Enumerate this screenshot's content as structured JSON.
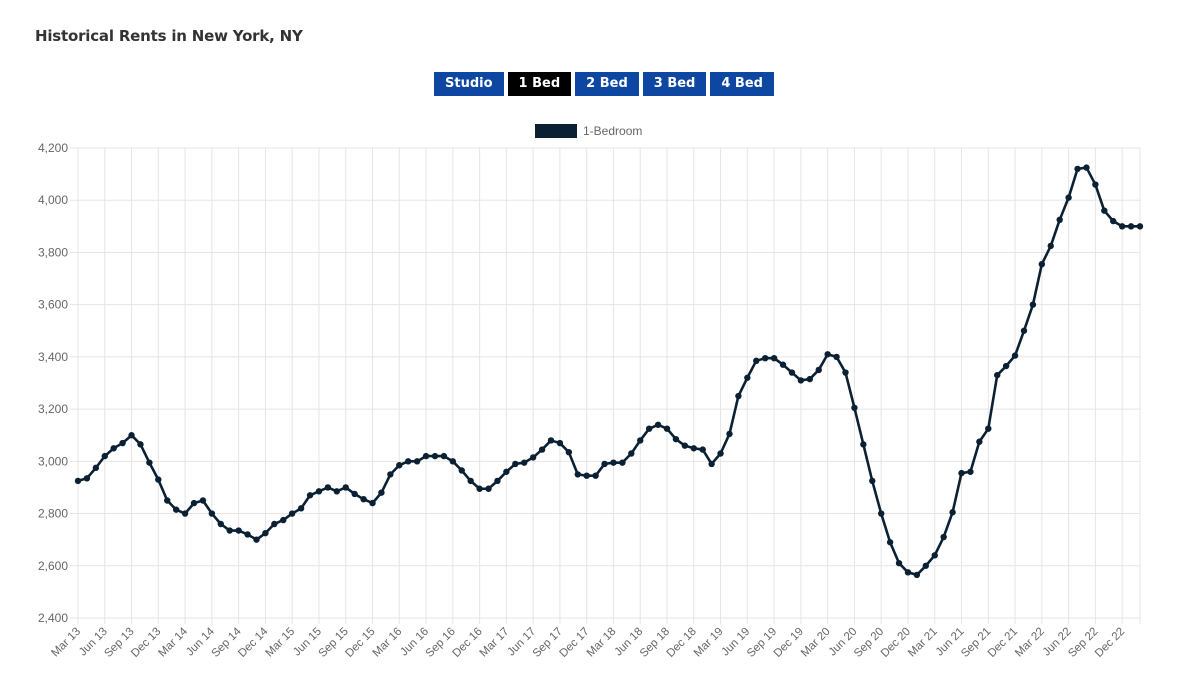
{
  "page": {
    "title": "Historical Rents in New York, NY"
  },
  "tabs": [
    {
      "label": "Studio",
      "active": false
    },
    {
      "label": "1 Bed",
      "active": true
    },
    {
      "label": "2 Bed",
      "active": false
    },
    {
      "label": "3 Bed",
      "active": false
    },
    {
      "label": "4 Bed",
      "active": false
    }
  ],
  "colors": {
    "line": "#0b2133",
    "tab": "#0d47a1",
    "tab_active": "#000000",
    "grid": "#e5e5e5"
  },
  "chart_data": {
    "type": "line",
    "title": "",
    "xlabel": "",
    "ylabel": "",
    "legend": {
      "placement": "top-center",
      "entries": [
        "1-Bedroom"
      ]
    },
    "grid": true,
    "ylim": [
      2400,
      4200
    ],
    "yticks": [
      "2,400",
      "2,600",
      "2,800",
      "3,000",
      "3,200",
      "3,400",
      "3,600",
      "3,800",
      "4,000",
      "4,200"
    ],
    "xticks": [
      "Mar 13",
      "Jun 13",
      "Sep 13",
      "Dec 13",
      "Mar 14",
      "Jun 14",
      "Sep 14",
      "Dec 14",
      "Mar 15",
      "Jun 15",
      "Sep 15",
      "Dec 15",
      "Mar 16",
      "Jun 16",
      "Sep 16",
      "Dec 16",
      "Mar 17",
      "Jun 17",
      "Sep 17",
      "Dec 17",
      "Mar 18",
      "Jun 18",
      "Sep 18",
      "Dec 18",
      "Mar 19",
      "Jun 19",
      "Sep 19",
      "Dec 19",
      "Mar 20",
      "Jun 20",
      "Sep 20",
      "Dec 20",
      "Mar 21",
      "Jun 21",
      "Sep 21",
      "Dec 21",
      "Mar 22",
      "Jun 22",
      "Sep 22",
      "Dec 22"
    ],
    "x_start": "Mar 13",
    "x_frequency": "monthly",
    "series": [
      {
        "name": "1-Bedroom",
        "values": [
          2925,
          2935,
          2975,
          3020,
          3050,
          3070,
          3100,
          3065,
          2995,
          2930,
          2850,
          2815,
          2800,
          2840,
          2850,
          2800,
          2760,
          2735,
          2735,
          2720,
          2700,
          2725,
          2760,
          2775,
          2800,
          2820,
          2870,
          2885,
          2900,
          2885,
          2900,
          2875,
          2855,
          2840,
          2880,
          2950,
          2985,
          3000,
          3000,
          3020,
          3020,
          3020,
          3000,
          2965,
          2925,
          2895,
          2895,
          2925,
          2960,
          2990,
          2995,
          3015,
          3045,
          3080,
          3070,
          3035,
          2950,
          2945,
          2945,
          2990,
          2995,
          2995,
          3030,
          3080,
          3125,
          3140,
          3125,
          3085,
          3060,
          3050,
          3045,
          2990,
          3030,
          3105,
          3250,
          3320,
          3385,
          3395,
          3395,
          3370,
          3340,
          3310,
          3315,
          3350,
          3410,
          3400,
          3340,
          3205,
          3065,
          2925,
          2800,
          2690,
          2610,
          2575,
          2565,
          2600,
          2640,
          2710,
          2805,
          2955,
          2960,
          3075,
          3125,
          3330,
          3365,
          3405,
          3500,
          3600,
          3755,
          3825,
          3925,
          4010,
          4120,
          4125,
          4060,
          3960,
          3920,
          3900,
          3900,
          3900
        ]
      }
    ]
  }
}
